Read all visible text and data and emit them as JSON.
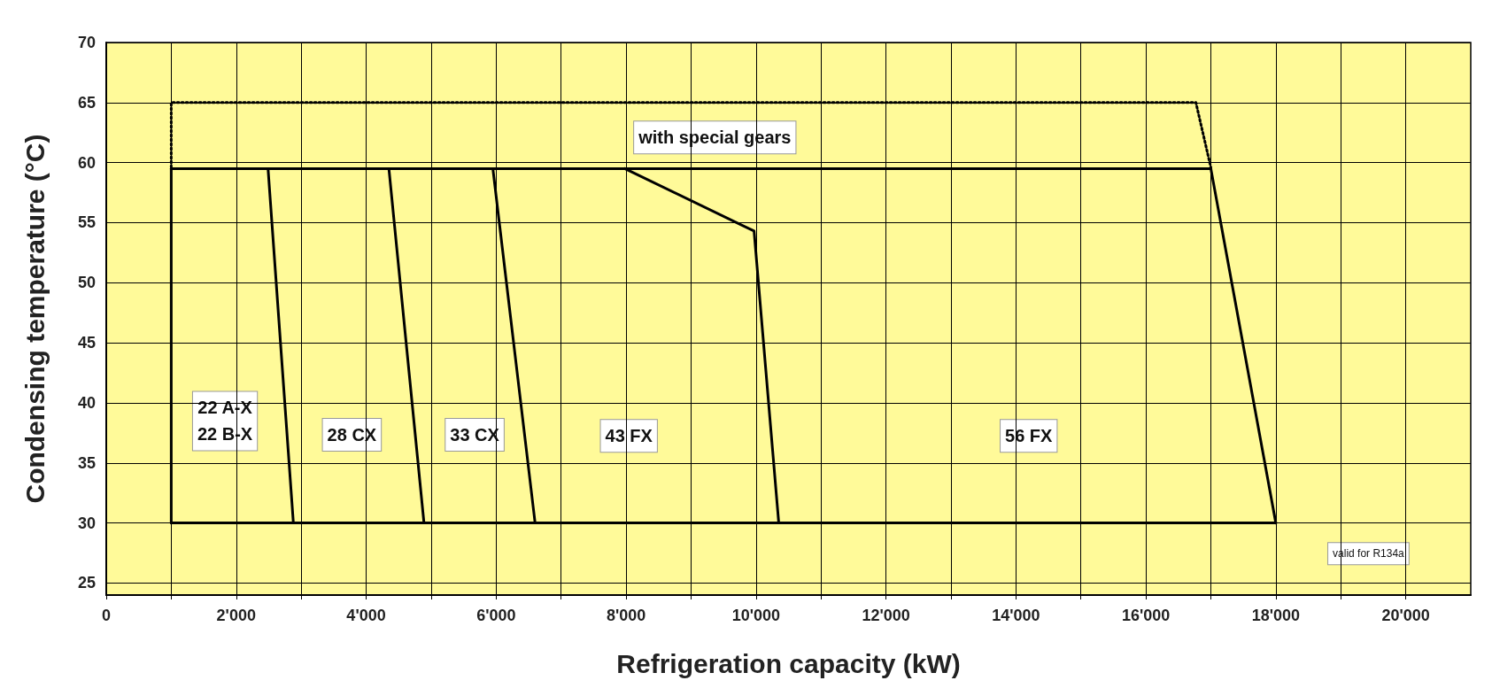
{
  "chart_data": {
    "type": "line",
    "xlabel": "Refrigeration capacity (kW)",
    "ylabel": "Condensing temperature (°C)",
    "xlim": [
      0,
      21000
    ],
    "ylim": [
      24,
      70
    ],
    "xticks": [
      0,
      {
        "value": 1000,
        "label": null
      },
      {
        "value": 2000,
        "label": "2'000"
      },
      {
        "value": 3000,
        "label": null
      },
      {
        "value": 4000,
        "label": "4'000"
      },
      {
        "value": 5000,
        "label": null
      },
      {
        "value": 6000,
        "label": "6'000"
      },
      {
        "value": 7000,
        "label": null
      },
      {
        "value": 8000,
        "label": "8'000"
      },
      {
        "value": 9000,
        "label": null
      },
      {
        "value": 10000,
        "label": "10'000"
      },
      {
        "value": 11000,
        "label": null
      },
      {
        "value": 12000,
        "label": "12'000"
      },
      {
        "value": 13000,
        "label": null
      },
      {
        "value": 14000,
        "label": "14'000"
      },
      {
        "value": 15000,
        "label": null
      },
      {
        "value": 16000,
        "label": "16'000"
      },
      {
        "value": 17000,
        "label": null
      },
      {
        "value": 18000,
        "label": "18'000"
      },
      {
        "value": 19000,
        "label": null
      },
      {
        "value": 20000,
        "label": "20'000"
      }
    ],
    "yticks": [
      25,
      30,
      35,
      40,
      45,
      50,
      55,
      60,
      65,
      70
    ],
    "grid": true,
    "marker": "none",
    "series": [
      {
        "color": "#000000",
        "line_style": "dotted",
        "x": [
          1000,
          1000,
          16770,
          17000
        ],
        "values": [
          59.6,
          65,
          65,
          59.6
        ]
      },
      {
        "color": "#000000",
        "x": [
          1000,
          1000
        ],
        "values": [
          30,
          59.5
        ]
      },
      {
        "color": "#000000",
        "x": [
          1000,
          17000
        ],
        "values": [
          59.5,
          59.5
        ]
      },
      {
        "color": "#000000",
        "x": [
          17000,
          18000
        ],
        "values": [
          59.5,
          30
        ]
      },
      {
        "color": "#000000",
        "x": [
          1000,
          18000
        ],
        "values": [
          30,
          30
        ]
      },
      {
        "color": "#000000",
        "x": [
          2490,
          2880
        ],
        "values": [
          59.5,
          30
        ]
      },
      {
        "color": "#000000",
        "x": [
          4350,
          4890
        ],
        "values": [
          59.5,
          30
        ]
      },
      {
        "color": "#000000",
        "x": [
          5950,
          6600
        ],
        "values": [
          59.5,
          30
        ]
      },
      {
        "color": "#000000",
        "x": [
          7980,
          9970,
          10350
        ],
        "values": [
          59.5,
          54.3,
          30
        ]
      }
    ],
    "annotations": [
      "with special gears",
      "22 A-X\n22 B-X",
      "28 CX",
      "33 CX",
      "43 FX",
      "56 FX",
      "valid for R134a"
    ]
  }
}
